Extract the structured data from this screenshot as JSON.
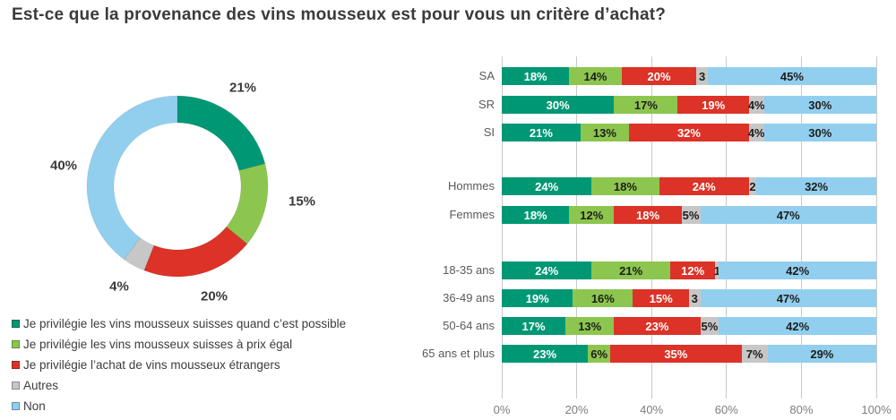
{
  "title": "Est-ce que la provenance des vins mousseux est pour vous un critère d’achat?",
  "palette": [
    "#009874",
    "#8DC64F",
    "#DC3227",
    "#C7C7C7",
    "#92CFEF"
  ],
  "legend": [
    {
      "label": "Je privilégie les vins mousseux suisses quand c’est possible",
      "color": "#009874"
    },
    {
      "label": "Je privilégie les vins mousseux suisses à prix égal",
      "color": "#8DC64F"
    },
    {
      "label": "Je privilégie l’achat de vins mousseux étrangers",
      "color": "#DC3227"
    },
    {
      "label": "Autres",
      "color": "#C7C7C7"
    },
    {
      "label": "Non",
      "color": "#92CFEF"
    }
  ],
  "chart_data": [
    {
      "type": "pie",
      "subtype": "donut",
      "start_angle": "top",
      "direction": "clockwise",
      "labels": [
        "Je privilégie les vins mousseux suisses quand c’est possible",
        "Je privilégie les vins mousseux suisses à prix égal",
        "Je privilégie l’achat de vins mousseux étrangers",
        "Autres",
        "Non"
      ],
      "values": [
        21,
        15,
        20,
        4,
        40
      ],
      "value_labels": [
        "21%",
        "15%",
        "20%",
        "4%",
        "40%"
      ],
      "colors": [
        "#009874",
        "#8DC64F",
        "#DC3227",
        "#C7C7C7",
        "#92CFEF"
      ]
    },
    {
      "type": "bar",
      "orientation": "horizontal",
      "stacked": true,
      "grid": true,
      "xlim": [
        0,
        100
      ],
      "x_ticks": [
        "0%",
        "20%",
        "40%",
        "60%",
        "80%",
        "100%"
      ],
      "categories": [
        "SA",
        "SR",
        "SI",
        "Hommes",
        "Femmes",
        "18-35 ans",
        "36-49 ans",
        "50-64 ans",
        "65 ans et plus"
      ],
      "category_groups": [
        [
          "SA",
          "SR",
          "SI"
        ],
        [
          "Hommes",
          "Femmes"
        ],
        [
          "18-35 ans",
          "36-49 ans",
          "50-64 ans",
          "65 ans et plus"
        ]
      ],
      "series": [
        {
          "name": "Je privilégie les vins mousseux suisses quand c’est possible",
          "color": "#009874",
          "values": [
            18,
            30,
            21,
            24,
            18,
            24,
            19,
            17,
            23
          ]
        },
        {
          "name": "Je privilégie les vins mousseux suisses à prix égal",
          "color": "#8DC64F",
          "values": [
            14,
            17,
            13,
            18,
            12,
            21,
            16,
            13,
            6
          ]
        },
        {
          "name": "Je privilégie l’achat de vins mousseux étrangers",
          "color": "#DC3227",
          "values": [
            20,
            19,
            32,
            24,
            18,
            12,
            15,
            23,
            35
          ]
        },
        {
          "name": "Autres",
          "color": "#C7C7C7",
          "values": [
            3,
            4,
            4,
            2,
            5,
            1,
            3,
            5,
            7
          ]
        },
        {
          "name": "Non",
          "color": "#92CFEF",
          "values": [
            45,
            30,
            30,
            32,
            47,
            42,
            47,
            42,
            29
          ]
        }
      ],
      "segment_labels": [
        [
          "18%",
          "14%",
          "20%",
          "3",
          "45%"
        ],
        [
          "30%",
          "17%",
          "19%",
          "4%",
          "30%"
        ],
        [
          "21%",
          "13%",
          "32%",
          "4%",
          "30%"
        ],
        [
          "24%",
          "18%",
          "24%",
          "2",
          "32%"
        ],
        [
          "18%",
          "12%",
          "18%",
          "5%",
          "47%"
        ],
        [
          "24%",
          "21%",
          "12%",
          "1",
          "42%"
        ],
        [
          "19%",
          "16%",
          "15%",
          "3",
          "47%"
        ],
        [
          "17%",
          "13%",
          "23%",
          "5%",
          "42%"
        ],
        [
          "23%",
          "6%",
          "35%",
          "7%",
          "29%"
        ]
      ]
    }
  ]
}
